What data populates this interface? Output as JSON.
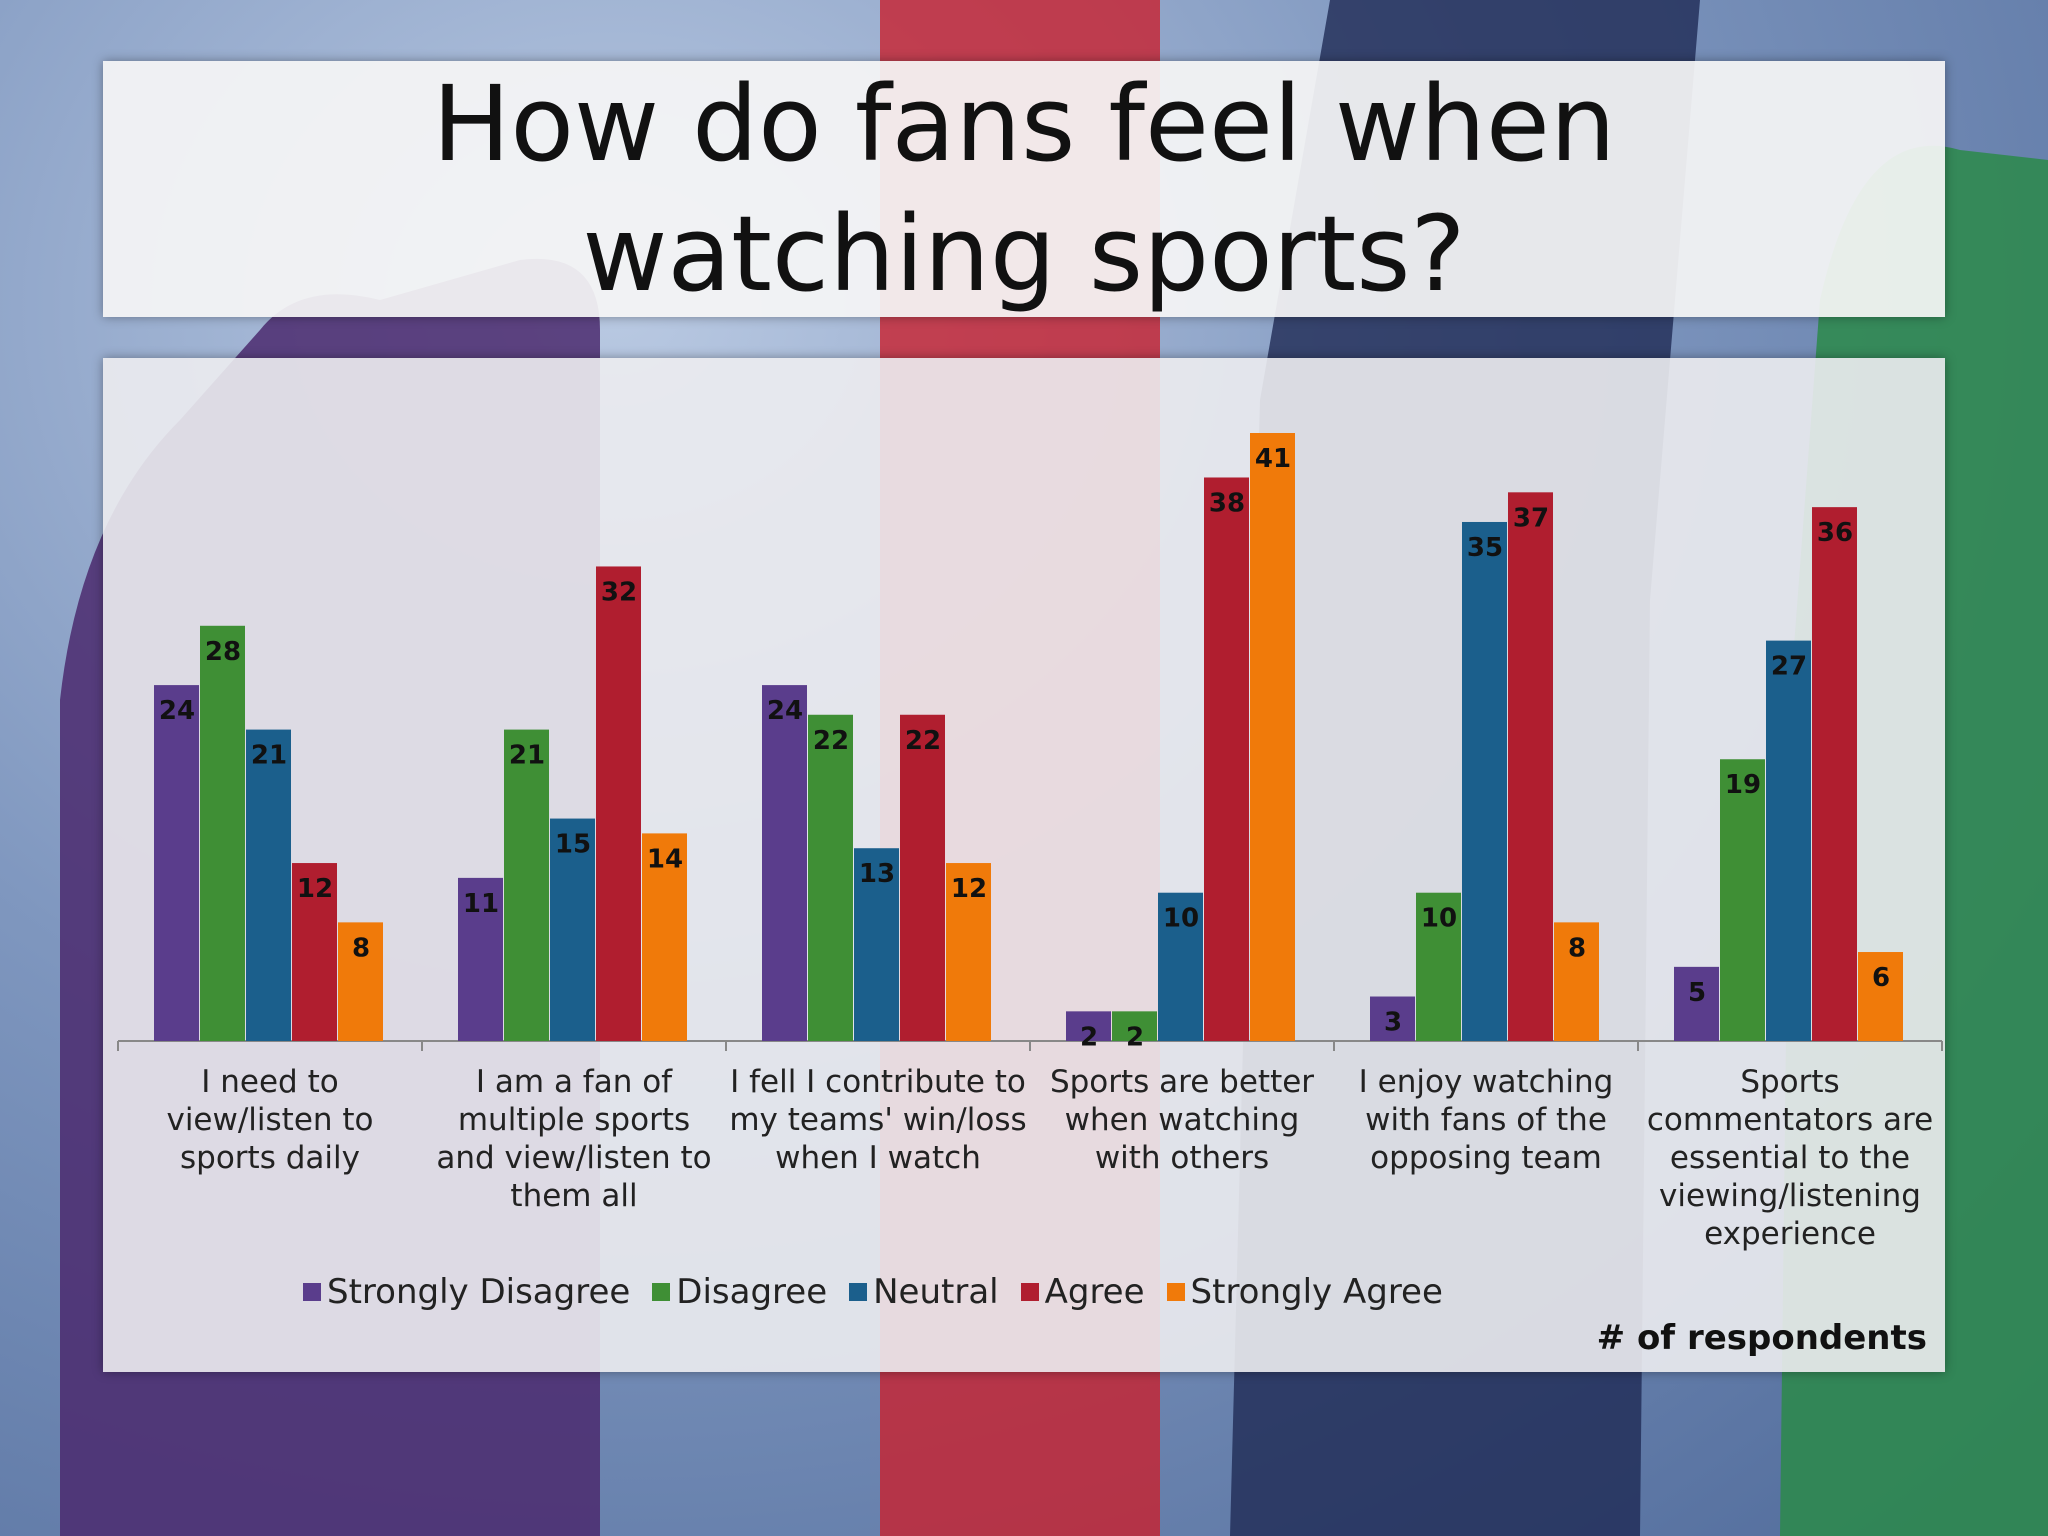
{
  "slide": {
    "title": "How do fans feel when watching sports?"
  },
  "chart_data": {
    "type": "bar",
    "categories": [
      "I need to view/listen to sports daily",
      "I am a fan of multiple sports and view/listen to them all",
      "I fell I contribute to my teams' win/loss when I watch",
      "Sports are better when watching with others",
      "I enjoy watching with fans of the opposing team",
      "Sports commentators are essential to the viewing/listening experience"
    ],
    "series": [
      {
        "name": "Strongly Disagree",
        "color": "#5a3d8c",
        "values": [
          24,
          11,
          24,
          2,
          3,
          5
        ]
      },
      {
        "name": "Disagree",
        "color": "#3f8f35",
        "values": [
          28,
          21,
          22,
          2,
          10,
          19
        ]
      },
      {
        "name": "Neutral",
        "color": "#1b5f8c",
        "values": [
          21,
          15,
          13,
          10,
          35,
          27
        ]
      },
      {
        "name": "Agree",
        "color": "#b01e2f",
        "values": [
          12,
          32,
          22,
          38,
          37,
          36
        ]
      },
      {
        "name": "Strongly Agree",
        "color": "#f07a0a",
        "values": [
          8,
          14,
          12,
          41,
          8,
          6
        ]
      }
    ],
    "ylim": [
      0,
      41
    ],
    "units_note": "# of respondents",
    "grid": false,
    "legend_position": "bottom",
    "data_labels": true
  }
}
